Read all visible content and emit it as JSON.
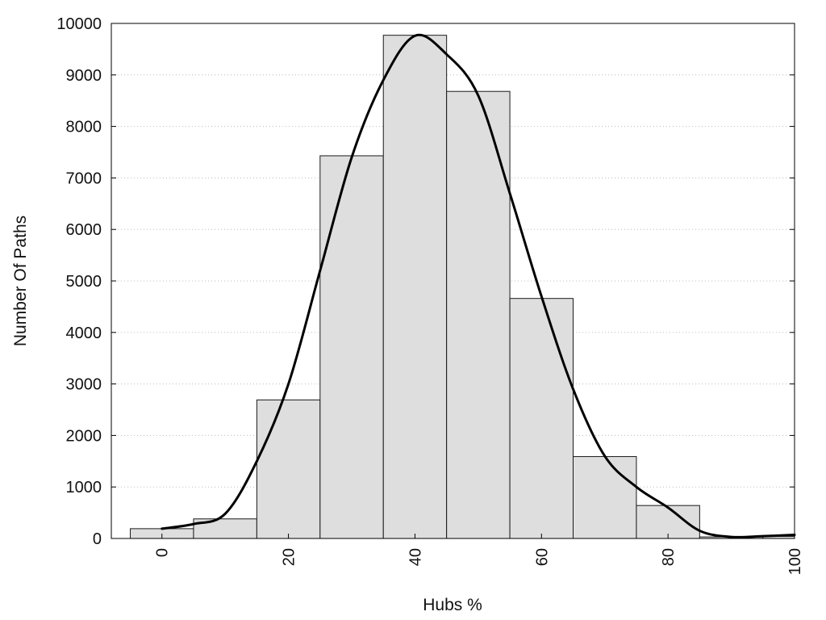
{
  "chart_data": {
    "type": "bar",
    "title": "",
    "xlabel": "Hubs %",
    "ylabel": "Number Of Paths",
    "xlim": [
      -8,
      100
    ],
    "ylim": [
      0,
      10000
    ],
    "bin_width": 10,
    "bars": [
      {
        "x": 0,
        "value": 190
      },
      {
        "x": 10,
        "value": 380
      },
      {
        "x": 20,
        "value": 2690
      },
      {
        "x": 30,
        "value": 7430
      },
      {
        "x": 40,
        "value": 9770
      },
      {
        "x": 50,
        "value": 8680
      },
      {
        "x": 60,
        "value": 4660
      },
      {
        "x": 70,
        "value": 1590
      },
      {
        "x": 80,
        "value": 640
      },
      {
        "x": 90,
        "value": 30
      },
      {
        "x": 100,
        "value": 40
      }
    ],
    "curve": {
      "type": "line",
      "x": [
        0,
        5,
        10,
        15,
        20,
        25,
        30,
        35,
        40,
        45,
        50,
        55,
        60,
        65,
        70,
        75,
        80,
        85,
        90,
        95,
        100
      ],
      "y": [
        190,
        280,
        480,
        1500,
        3000,
        5200,
        7400,
        8900,
        9760,
        9400,
        8600,
        6700,
        4700,
        2900,
        1600,
        1000,
        600,
        150,
        30,
        45,
        70
      ]
    },
    "x_ticks": [
      "0",
      "20",
      "40",
      "60",
      "80",
      "100"
    ],
    "y_ticks": [
      "0",
      "1000",
      "2000",
      "3000",
      "4000",
      "5000",
      "6000",
      "7000",
      "8000",
      "9000",
      "10000"
    ],
    "grid": {
      "y": true,
      "x": false,
      "style": "dotted"
    },
    "colors": {
      "bar_fill": "#dedede",
      "bar_stroke": "#1a1a1a",
      "curve": "#000000",
      "grid": "#bbbbbb",
      "frame": "#000000"
    }
  }
}
